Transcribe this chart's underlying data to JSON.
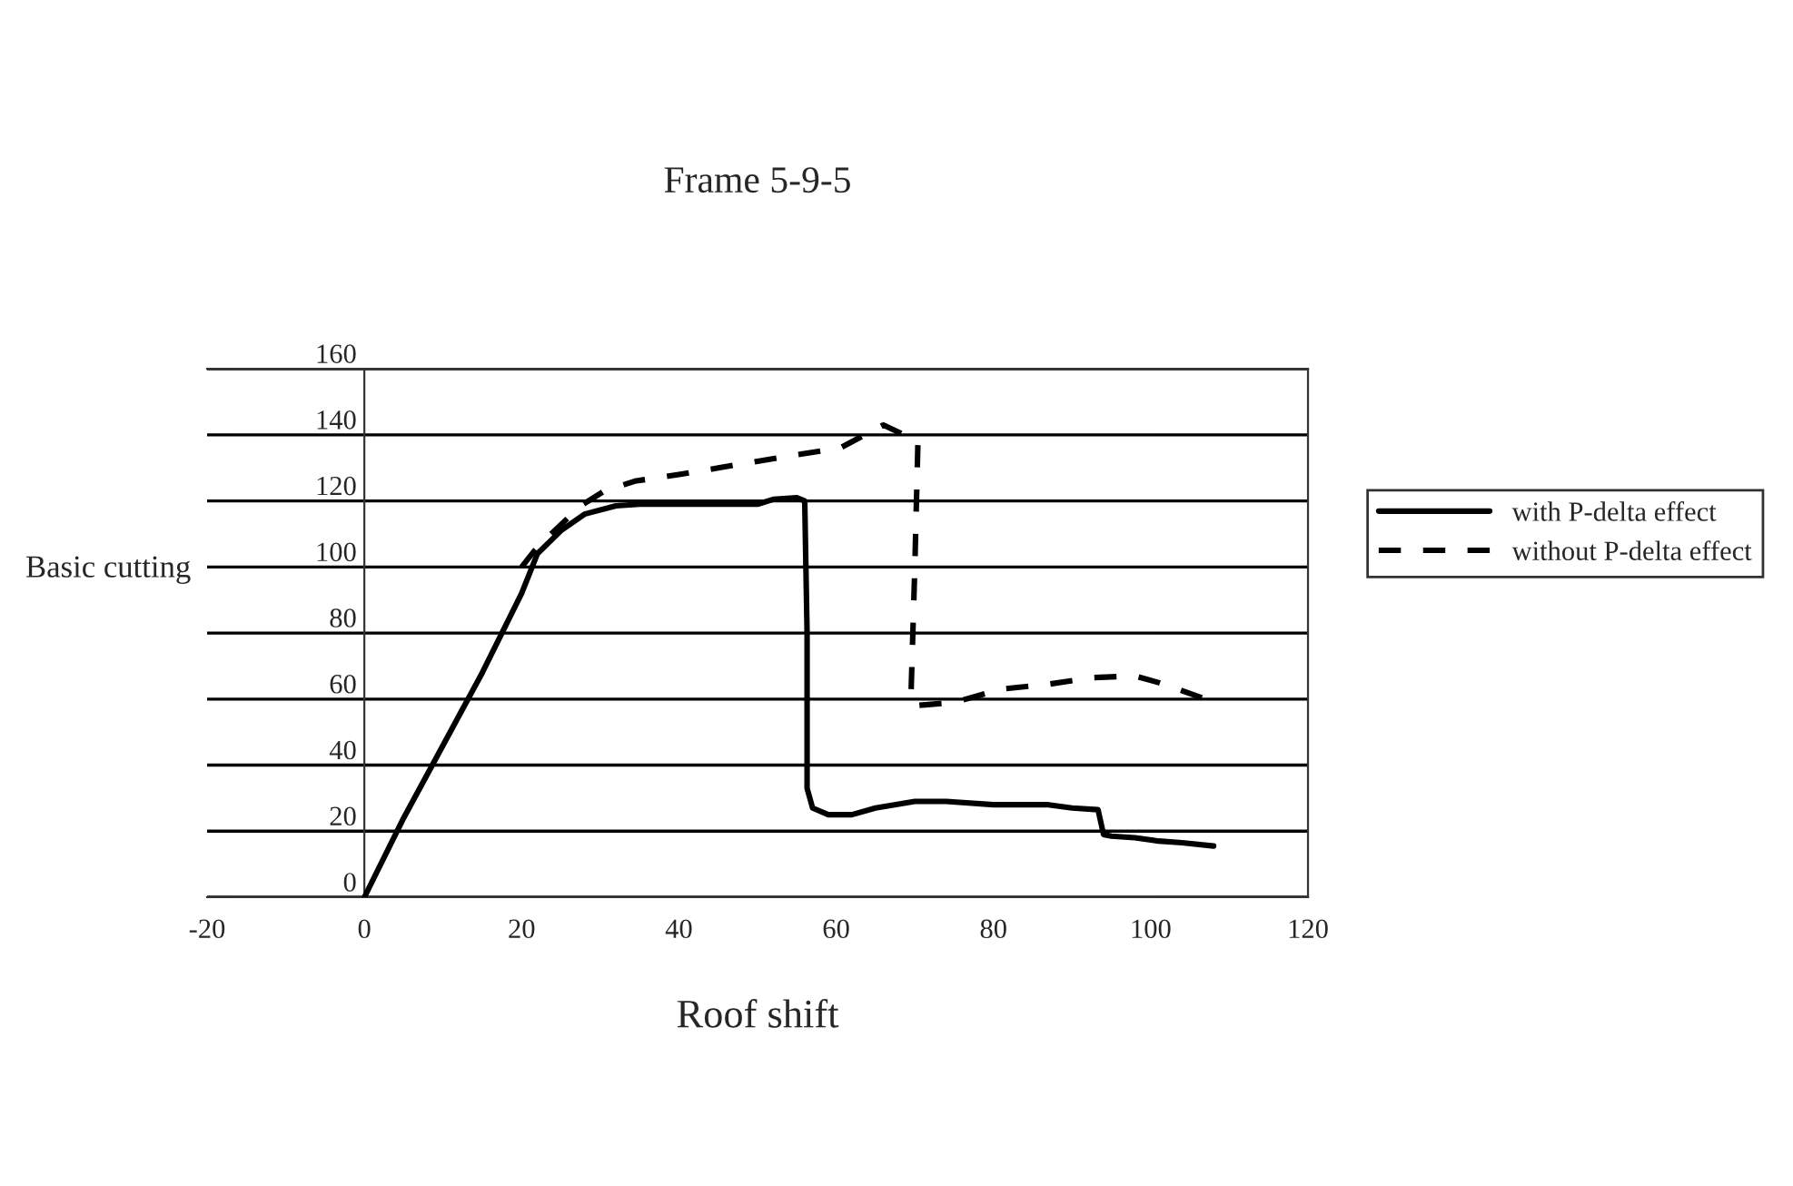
{
  "chart_data": {
    "type": "line",
    "title": "Frame 5-9-5",
    "xlabel": "Roof shift",
    "ylabel": "Basic cutting",
    "xlim": [
      -20,
      120
    ],
    "xticks": [
      {
        "value": -20,
        "label": "-20"
      },
      0,
      20,
      40,
      60,
      80,
      100,
      120
    ],
    "ylim": [
      0,
      160
    ],
    "yticks": [
      0,
      20,
      40,
      60,
      80,
      100,
      120,
      140,
      160
    ],
    "grid": "y",
    "legend": "right",
    "marker": "none",
    "series": [
      {
        "name": "with P-delta effect",
        "color": "#000000",
        "line_style": "solid",
        "x": [
          0,
          5,
          10,
          15,
          20,
          22,
          25,
          28,
          32,
          35,
          40,
          45,
          50,
          52,
          55,
          56,
          56.3,
          56.3,
          57,
          59,
          62,
          65,
          70,
          74,
          80,
          87,
          90,
          93.3,
          94,
          95,
          98,
          101,
          104,
          108
        ],
        "values": [
          0,
          24,
          46,
          68,
          92,
          104,
          111,
          116,
          118.5,
          119,
          119,
          119,
          119,
          120.5,
          121,
          120,
          80,
          33,
          27,
          25,
          25,
          27,
          29,
          29,
          28,
          28,
          27,
          26.5,
          19,
          18.5,
          18,
          17,
          16.5,
          15.5
        ]
      },
      {
        "name": "without P-delta effect",
        "color": "#000000",
        "line_style": "dashed",
        "x": [
          20,
          22,
          27.5,
          30.5,
          34.4,
          40,
          45,
          50,
          55,
          60.5,
          66,
          70.4,
          70,
          69.5,
          70,
          75,
          81,
          87,
          92.6,
          98,
          101,
          107
        ],
        "values": [
          100,
          106,
          118.5,
          123,
          126,
          128,
          130,
          132,
          134,
          136,
          143,
          138,
          100,
          60,
          58,
          59,
          63,
          64.5,
          66.5,
          67,
          65,
          60
        ]
      }
    ]
  }
}
